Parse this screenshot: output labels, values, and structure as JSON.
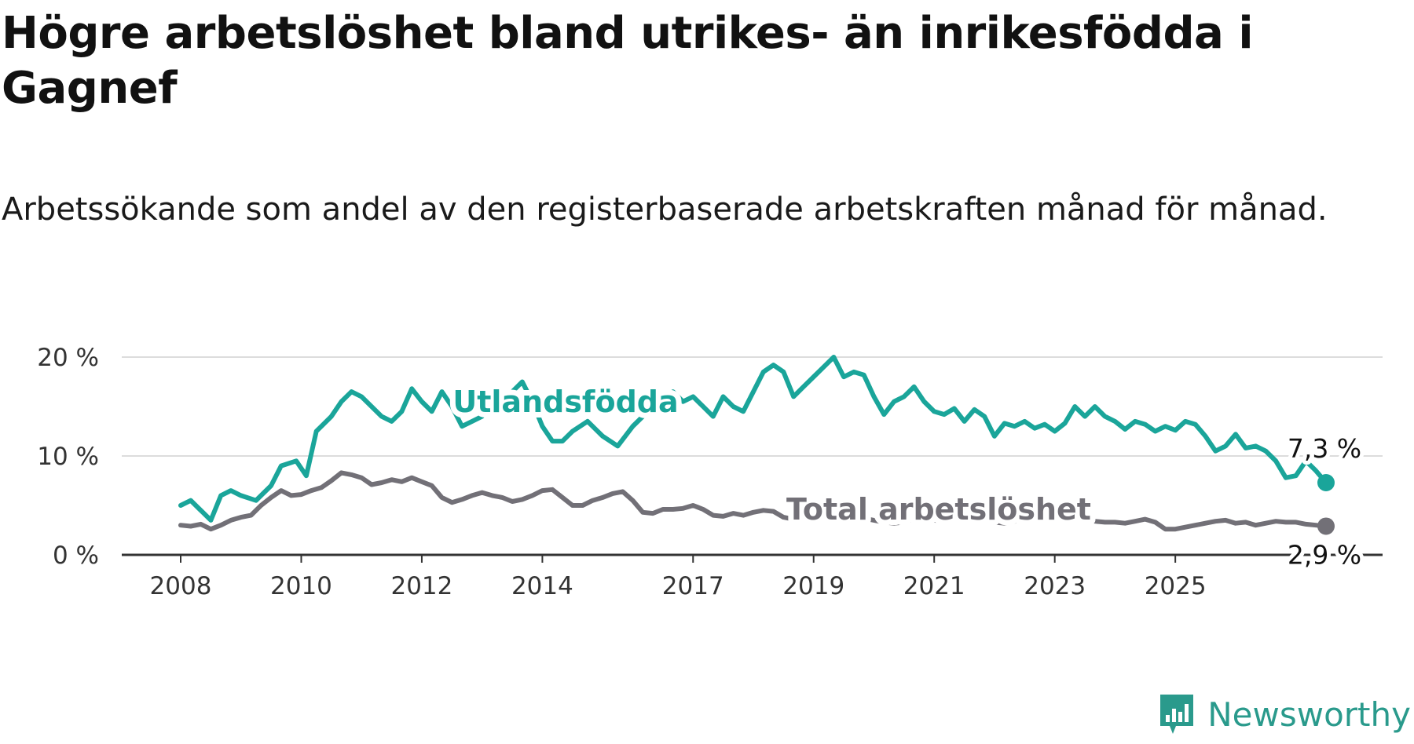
{
  "title": "Högre arbetslöshet bland utrikes- än inrikesfödda i Gagnef",
  "subtitle": "Arbetssökande som andel av den registerbaserade arbetskraften månad för månad.",
  "brand": {
    "name": "Newsworthy",
    "color": "#2a9a8c",
    "icon": "newsworthy-logo-icon"
  },
  "chart_data": {
    "type": "line",
    "x_format": "year-month",
    "ylim": [
      0,
      20
    ],
    "y_ticks": [
      "0 %",
      "10 %",
      "20 %"
    ],
    "y_tick_values": [
      0,
      10,
      20
    ],
    "x_ticks": [
      "2008",
      "2010",
      "2012",
      "2014",
      "2017",
      "2019",
      "2021",
      "2023",
      "2025"
    ],
    "grid": "horizontal",
    "series": [
      {
        "name": "Utlandsfödda",
        "color": "#1aa59a",
        "end_label": "7,3 %",
        "points": [
          [
            "2008-01",
            5.0
          ],
          [
            "2008-03",
            5.5
          ],
          [
            "2008-05",
            4.5
          ],
          [
            "2008-07",
            3.5
          ],
          [
            "2008-09",
            6.0
          ],
          [
            "2008-11",
            6.5
          ],
          [
            "2009-01",
            6.0
          ],
          [
            "2009-04",
            5.5
          ],
          [
            "2009-07",
            7.0
          ],
          [
            "2009-09",
            9.0
          ],
          [
            "2009-12",
            9.5
          ],
          [
            "2010-02",
            8.0
          ],
          [
            "2010-04",
            12.5
          ],
          [
            "2010-07",
            14.0
          ],
          [
            "2010-09",
            15.5
          ],
          [
            "2010-11",
            16.5
          ],
          [
            "2011-01",
            16.0
          ],
          [
            "2011-03",
            15.0
          ],
          [
            "2011-05",
            14.0
          ],
          [
            "2011-07",
            13.5
          ],
          [
            "2011-09",
            14.5
          ],
          [
            "2011-11",
            16.8
          ],
          [
            "2012-01",
            15.5
          ],
          [
            "2012-03",
            14.5
          ],
          [
            "2012-05",
            16.5
          ],
          [
            "2012-07",
            15.0
          ],
          [
            "2012-09",
            13.0
          ],
          [
            "2012-11",
            13.5
          ],
          [
            "2013-01",
            14.0
          ],
          [
            "2013-03",
            16.0
          ],
          [
            "2013-05",
            15.0
          ],
          [
            "2013-07",
            16.5
          ],
          [
            "2013-09",
            17.5
          ],
          [
            "2013-11",
            15.5
          ],
          [
            "2014-01",
            13.0
          ],
          [
            "2014-03",
            11.5
          ],
          [
            "2014-05",
            11.5
          ],
          [
            "2014-07",
            12.5
          ],
          [
            "2014-10",
            13.5
          ],
          [
            "2015-01",
            12.0
          ],
          [
            "2015-04",
            11.0
          ],
          [
            "2015-07",
            13.0
          ],
          [
            "2015-10",
            14.5
          ],
          [
            "2016-01",
            15.5
          ],
          [
            "2016-03",
            16.5
          ],
          [
            "2016-05",
            15.5
          ],
          [
            "2016-07",
            16.0
          ],
          [
            "2016-09",
            15.0
          ],
          [
            "2016-11",
            14.0
          ],
          [
            "2017-01",
            16.0
          ],
          [
            "2017-03",
            15.0
          ],
          [
            "2017-05",
            14.5
          ],
          [
            "2017-07",
            16.5
          ],
          [
            "2017-09",
            18.5
          ],
          [
            "2017-11",
            19.2
          ],
          [
            "2018-01",
            18.5
          ],
          [
            "2018-03",
            16.0
          ],
          [
            "2018-05",
            17.0
          ],
          [
            "2018-07",
            18.0
          ],
          [
            "2018-09",
            19.0
          ],
          [
            "2018-11",
            20.0
          ],
          [
            "2019-01",
            18.0
          ],
          [
            "2019-03",
            18.5
          ],
          [
            "2019-05",
            18.2
          ],
          [
            "2019-07",
            16.0
          ],
          [
            "2019-09",
            14.2
          ],
          [
            "2019-11",
            15.5
          ],
          [
            "2020-01",
            16.0
          ],
          [
            "2020-03",
            17.0
          ],
          [
            "2020-05",
            15.5
          ],
          [
            "2020-07",
            14.5
          ],
          [
            "2020-09",
            14.2
          ],
          [
            "2020-11",
            14.8
          ],
          [
            "2021-01",
            13.5
          ],
          [
            "2021-03",
            14.7
          ],
          [
            "2021-05",
            14.0
          ],
          [
            "2021-07",
            12.0
          ],
          [
            "2021-09",
            13.3
          ],
          [
            "2021-11",
            13.0
          ],
          [
            "2022-01",
            13.5
          ],
          [
            "2022-03",
            12.8
          ],
          [
            "2022-05",
            13.2
          ],
          [
            "2022-07",
            12.5
          ],
          [
            "2022-09",
            13.3
          ],
          [
            "2022-11",
            15.0
          ],
          [
            "2023-01",
            14.0
          ],
          [
            "2023-03",
            15.0
          ],
          [
            "2023-05",
            14.0
          ],
          [
            "2023-07",
            13.5
          ],
          [
            "2023-09",
            12.7
          ],
          [
            "2023-11",
            13.5
          ],
          [
            "2024-01",
            13.2
          ],
          [
            "2024-03",
            12.5
          ],
          [
            "2024-05",
            13.0
          ],
          [
            "2024-07",
            12.6
          ],
          [
            "2024-09",
            13.5
          ],
          [
            "2024-11",
            13.2
          ],
          [
            "2025-01",
            12.0
          ],
          [
            "2025-03",
            10.5
          ],
          [
            "2025-05",
            11.0
          ],
          [
            "2025-07",
            12.2
          ],
          [
            "2025-09",
            10.8
          ],
          [
            "2025-11",
            11.0
          ],
          [
            "2026-01",
            10.5
          ],
          [
            "2026-03",
            9.5
          ],
          [
            "2026-05",
            7.8
          ],
          [
            "2026-07",
            8.0
          ],
          [
            "2026-09",
            9.5
          ],
          [
            "2026-11",
            8.5
          ],
          [
            "2027-01",
            7.3
          ]
        ]
      },
      {
        "name": "Total arbetslöshet",
        "color": "#727077",
        "end_label": "2,9 %",
        "points": [
          [
            "2008-01",
            3.0
          ],
          [
            "2008-03",
            2.9
          ],
          [
            "2008-05",
            3.1
          ],
          [
            "2008-07",
            2.6
          ],
          [
            "2008-09",
            3.0
          ],
          [
            "2008-11",
            3.5
          ],
          [
            "2009-01",
            3.8
          ],
          [
            "2009-03",
            4.0
          ],
          [
            "2009-05",
            5.0
          ],
          [
            "2009-07",
            5.8
          ],
          [
            "2009-09",
            6.5
          ],
          [
            "2009-11",
            6.0
          ],
          [
            "2010-01",
            6.1
          ],
          [
            "2010-03",
            6.5
          ],
          [
            "2010-05",
            6.8
          ],
          [
            "2010-07",
            7.5
          ],
          [
            "2010-09",
            8.3
          ],
          [
            "2010-11",
            8.1
          ],
          [
            "2011-01",
            7.8
          ],
          [
            "2011-03",
            7.1
          ],
          [
            "2011-05",
            7.3
          ],
          [
            "2011-07",
            7.6
          ],
          [
            "2011-09",
            7.4
          ],
          [
            "2011-11",
            7.8
          ],
          [
            "2012-01",
            7.4
          ],
          [
            "2012-03",
            7.0
          ],
          [
            "2012-05",
            5.8
          ],
          [
            "2012-07",
            5.3
          ],
          [
            "2012-09",
            5.6
          ],
          [
            "2012-11",
            6.0
          ],
          [
            "2013-01",
            6.3
          ],
          [
            "2013-03",
            6.0
          ],
          [
            "2013-05",
            5.8
          ],
          [
            "2013-07",
            5.4
          ],
          [
            "2013-09",
            5.6
          ],
          [
            "2013-11",
            6.0
          ],
          [
            "2014-01",
            6.5
          ],
          [
            "2014-03",
            6.6
          ],
          [
            "2014-05",
            5.8
          ],
          [
            "2014-07",
            5.0
          ],
          [
            "2014-09",
            5.0
          ],
          [
            "2014-11",
            5.5
          ],
          [
            "2015-01",
            5.8
          ],
          [
            "2015-03",
            6.2
          ],
          [
            "2015-05",
            6.4
          ],
          [
            "2015-07",
            5.5
          ],
          [
            "2015-09",
            4.3
          ],
          [
            "2015-11",
            4.2
          ],
          [
            "2016-01",
            4.6
          ],
          [
            "2016-03",
            4.6
          ],
          [
            "2016-05",
            4.7
          ],
          [
            "2016-07",
            5.0
          ],
          [
            "2016-09",
            4.6
          ],
          [
            "2016-11",
            4.0
          ],
          [
            "2017-01",
            3.9
          ],
          [
            "2017-03",
            4.2
          ],
          [
            "2017-05",
            4.0
          ],
          [
            "2017-07",
            4.3
          ],
          [
            "2017-09",
            4.5
          ],
          [
            "2017-11",
            4.4
          ],
          [
            "2018-01",
            3.8
          ],
          [
            "2018-03",
            3.6
          ],
          [
            "2018-05",
            3.5
          ],
          [
            "2018-07",
            3.6
          ],
          [
            "2018-09",
            3.7
          ],
          [
            "2018-11",
            4.2
          ],
          [
            "2019-01",
            4.4
          ],
          [
            "2019-03",
            4.0
          ],
          [
            "2019-05",
            3.7
          ],
          [
            "2019-07",
            3.5
          ],
          [
            "2019-09",
            3.3
          ],
          [
            "2019-11",
            3.2
          ],
          [
            "2020-01",
            3.3
          ],
          [
            "2020-03",
            3.6
          ],
          [
            "2020-05",
            3.8
          ],
          [
            "2020-07",
            3.5
          ],
          [
            "2020-09",
            3.4
          ],
          [
            "2020-11",
            3.5
          ],
          [
            "2021-01",
            3.6
          ],
          [
            "2021-03",
            3.8
          ],
          [
            "2021-05",
            3.5
          ],
          [
            "2021-07",
            3.3
          ],
          [
            "2021-09",
            3.2
          ],
          [
            "2021-11",
            3.4
          ],
          [
            "2022-01",
            3.5
          ],
          [
            "2022-03",
            3.6
          ],
          [
            "2022-05",
            3.5
          ],
          [
            "2022-07",
            3.6
          ],
          [
            "2022-09",
            3.5
          ],
          [
            "2022-11",
            3.7
          ],
          [
            "2023-01",
            3.9
          ],
          [
            "2023-03",
            3.4
          ],
          [
            "2023-05",
            3.3
          ],
          [
            "2023-07",
            3.3
          ],
          [
            "2023-09",
            3.2
          ],
          [
            "2023-11",
            3.4
          ],
          [
            "2024-01",
            3.6
          ],
          [
            "2024-03",
            3.3
          ],
          [
            "2024-05",
            2.6
          ],
          [
            "2024-07",
            2.6
          ],
          [
            "2024-09",
            2.8
          ],
          [
            "2024-11",
            3.0
          ],
          [
            "2025-01",
            3.2
          ],
          [
            "2025-03",
            3.4
          ],
          [
            "2025-05",
            3.5
          ],
          [
            "2025-07",
            3.2
          ],
          [
            "2025-09",
            3.3
          ],
          [
            "2025-11",
            3.0
          ],
          [
            "2026-01",
            3.2
          ],
          [
            "2026-03",
            3.4
          ],
          [
            "2026-05",
            3.3
          ],
          [
            "2026-07",
            3.3
          ],
          [
            "2026-09",
            3.1
          ],
          [
            "2026-11",
            3.0
          ],
          [
            "2027-01",
            2.9
          ]
        ]
      }
    ]
  }
}
